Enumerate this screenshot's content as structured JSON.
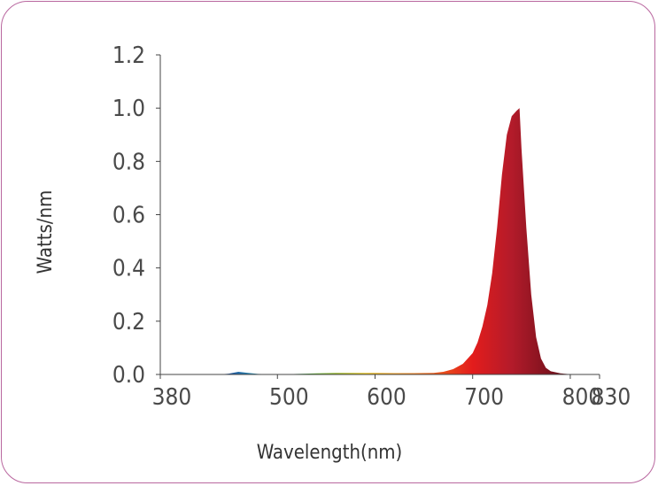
{
  "chart_data": {
    "type": "area",
    "xlabel": "Wavelength(nm)",
    "ylabel": "Watts/nm",
    "xlim": [
      380,
      830
    ],
    "ylim": [
      0,
      1.2
    ],
    "x_ticks": [
      380,
      500,
      600,
      700,
      800,
      830
    ],
    "x_tick_labels": [
      "380",
      "500",
      "600",
      "700",
      "800",
      "830"
    ],
    "y_ticks": [
      0,
      0.2,
      0.4,
      0.6,
      0.8,
      1.0,
      1.2
    ],
    "y_tick_labels": [
      "0.0",
      "0.2",
      "0.4",
      "0.6",
      "0.8",
      "1.0",
      "1.2"
    ],
    "grid": false,
    "series": [
      {
        "x": [
          440,
          450,
          460,
          470,
          480,
          490,
          500,
          510,
          520,
          540,
          560,
          580,
          600,
          620,
          640,
          660,
          670,
          680,
          690,
          700,
          705,
          710,
          715,
          720,
          725,
          730,
          735,
          740,
          745,
          748,
          750,
          755,
          760,
          765,
          770,
          775,
          780,
          790,
          800,
          810
        ],
        "y": [
          0,
          0.003,
          0.01,
          0.006,
          0.002,
          0.001,
          0.001,
          0.001,
          0.002,
          0.004,
          0.006,
          0.006,
          0.006,
          0.005,
          0.005,
          0.006,
          0.01,
          0.02,
          0.04,
          0.08,
          0.12,
          0.18,
          0.26,
          0.38,
          0.55,
          0.75,
          0.9,
          0.97,
          0.99,
          1.0,
          0.85,
          0.55,
          0.3,
          0.14,
          0.06,
          0.025,
          0.012,
          0.004,
          0.001,
          0
        ]
      }
    ],
    "colors": {
      "violet": "#3a2b8c",
      "blue": "#1f55a0",
      "cyan": "#2aa6b8",
      "green": "#5fae2e",
      "yellow": "#e3c020",
      "orange": "#ef7d1a",
      "red": "#e31c1c",
      "deep_red": "#b31b2a",
      "dark_red": "#6e0f1a",
      "frame": "#b9679f"
    }
  }
}
